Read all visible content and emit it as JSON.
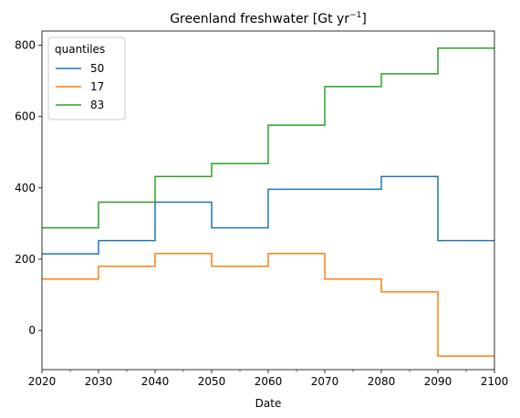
{
  "chart_data": {
    "type": "line",
    "drawstyle": "steps-post",
    "title_main": "Greenland freshwater [Gt yr",
    "title_sup": "−1",
    "title_end": "]",
    "xlabel": "Date",
    "ylabel": "",
    "xlim": [
      2020,
      2100
    ],
    "ylim": [
      -110,
      840
    ],
    "x_ticks": [
      2020,
      2030,
      2040,
      2050,
      2060,
      2070,
      2080,
      2090,
      2100
    ],
    "x_tick_labels": [
      "2020",
      "2030",
      "2040",
      "2050",
      "2060",
      "2070",
      "2080",
      "2090",
      "2100"
    ],
    "y_ticks": [
      0,
      200,
      400,
      600,
      800
    ],
    "y_tick_labels": [
      "0",
      "200",
      "400",
      "600",
      "800"
    ],
    "grid": false,
    "legend": {
      "title": "quantiles",
      "placement": "top-left"
    },
    "x": [
      2020,
      2030,
      2040,
      2050,
      2060,
      2070,
      2080,
      2090,
      2100
    ],
    "series": [
      {
        "name": "50",
        "color": "#1f77b4",
        "values": [
          215,
          252,
          360,
          288,
          396,
          396,
          432,
          252,
          252
        ]
      },
      {
        "name": "17",
        "color": "#ff7f0e",
        "values": [
          144,
          180,
          216,
          180,
          216,
          144,
          108,
          -72,
          -72
        ]
      },
      {
        "name": "83",
        "color": "#2ca02c",
        "values": [
          288,
          360,
          432,
          468,
          576,
          684,
          720,
          792,
          792
        ]
      }
    ]
  }
}
